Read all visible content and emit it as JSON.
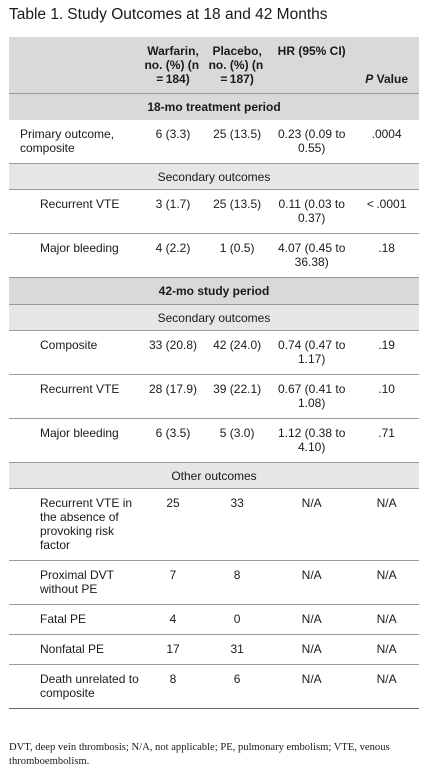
{
  "title": {
    "number": "Table 1.",
    "text": "Study Outcomes at 18 and 42 Months"
  },
  "header": {
    "warfarin": "Warfarin, no. (%) (n = 184)",
    "placebo": "Placebo, no. (%) (n = 187)",
    "hr": "HR (95% CI)",
    "p_value_italic": "P",
    "p_value_rest": " Value"
  },
  "sections": [
    {
      "title": "18-mo treatment period",
      "groups": [
        {
          "subtitle": "",
          "rows": [
            {
              "label": "Primary outcome, composite",
              "warfarin": "6 (3.3)",
              "placebo": "25 (13.5)",
              "hr": "0.23 (0.09 to 0.55)",
              "p": ".0004"
            }
          ]
        },
        {
          "subtitle": "Secondary outcomes",
          "rows": [
            {
              "label": "Recurrent VTE",
              "warfarin": "3 (1.7)",
              "placebo": "25 (13.5)",
              "hr": "0.11 (0.03 to 0.37)",
              "p": "< .0001"
            },
            {
              "label": "Major bleeding",
              "warfarin": "4 (2.2)",
              "placebo": "1 (0.5)",
              "hr": "4.07 (0.45 to 36.38)",
              "p": ".18"
            }
          ]
        }
      ]
    },
    {
      "title": "42-mo study period",
      "groups": [
        {
          "subtitle": "Secondary outcomes",
          "rows": [
            {
              "label": "Composite",
              "warfarin": "33 (20.8)",
              "placebo": "42 (24.0)",
              "hr": "0.74 (0.47 to 1.17)",
              "p": ".19"
            },
            {
              "label": "Recurrent VTE",
              "warfarin": "28 (17.9)",
              "placebo": "39 (22.1)",
              "hr": "0.67 (0.41 to 1.08)",
              "p": ".10"
            },
            {
              "label": "Major bleeding",
              "warfarin": "6 (3.5)",
              "placebo": "5 (3.0)",
              "hr": "1.12 (0.38 to 4.10)",
              "p": ".71"
            }
          ]
        },
        {
          "subtitle": "Other outcomes",
          "rows": [
            {
              "label": "Recurrent VTE in the absence of provoking risk factor",
              "warfarin": "25",
              "placebo": "33",
              "hr": "N/A",
              "p": "N/A"
            },
            {
              "label": "Proximal DVT without PE",
              "warfarin": "7",
              "placebo": "8",
              "hr": "N/A",
              "p": "N/A"
            },
            {
              "label": "Fatal PE",
              "warfarin": "4",
              "placebo": "0",
              "hr": "N/A",
              "p": "N/A"
            },
            {
              "label": "Nonfatal PE",
              "warfarin": "17",
              "placebo": "31",
              "hr": "N/A",
              "p": "N/A"
            },
            {
              "label": "Death unrelated to composite",
              "warfarin": "8",
              "placebo": "6",
              "hr": "N/A",
              "p": "N/A"
            }
          ]
        }
      ]
    }
  ],
  "footnote": "DVT, deep vein thrombosis; N/A, not applicable; PE, pulmonary embolism; VTE, venous thromboembolism."
}
